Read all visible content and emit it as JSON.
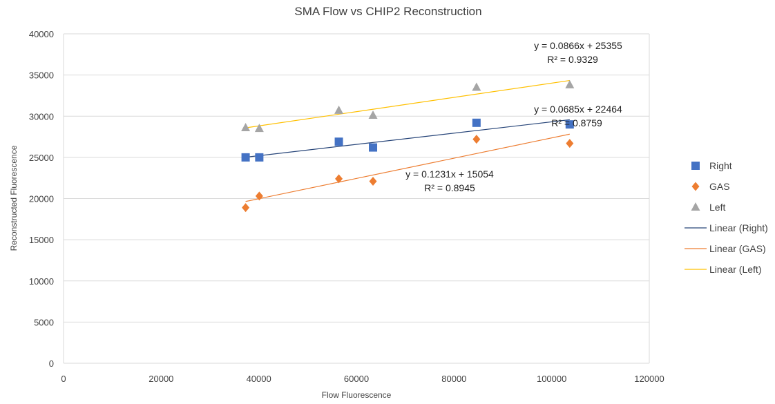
{
  "chart_data": {
    "type": "scatter",
    "title": "SMA Flow vs CHIP2 Reconstruction",
    "xlabel": "Flow Fluorescence",
    "ylabel": "Reconstructed Fluorescence",
    "xlim": [
      0,
      120000
    ],
    "ylim": [
      0,
      40000
    ],
    "x_ticks": [
      "0",
      "20000",
      "40000",
      "60000",
      "80000",
      "100000",
      "120000"
    ],
    "y_ticks": [
      "0",
      "5000",
      "10000",
      "15000",
      "20000",
      "25000",
      "30000",
      "35000",
      "40000"
    ],
    "grid": "horizontal",
    "legend_position": "right",
    "series": [
      {
        "name": "Right",
        "marker": "square",
        "color": "#4472C4",
        "points": [
          [
            37300,
            25000
          ],
          [
            40100,
            25000
          ],
          [
            56400,
            26900
          ],
          [
            63400,
            26200
          ],
          [
            84600,
            29200
          ],
          [
            103700,
            29000
          ]
        ]
      },
      {
        "name": "GAS",
        "marker": "diamond",
        "color": "#ED7D31",
        "points": [
          [
            37300,
            18900
          ],
          [
            40100,
            20300
          ],
          [
            56400,
            22400
          ],
          [
            63400,
            22100
          ],
          [
            84600,
            27200
          ],
          [
            103700,
            26700
          ]
        ]
      },
      {
        "name": "Left",
        "marker": "triangle",
        "color": "#A5A5A5",
        "points": [
          [
            37300,
            28600
          ],
          [
            40100,
            28500
          ],
          [
            56400,
            30700
          ],
          [
            63400,
            30100
          ],
          [
            84600,
            33500
          ],
          [
            103700,
            33800
          ]
        ]
      }
    ],
    "trendlines": [
      {
        "name": "Linear (Right)",
        "color": "#264478",
        "slope": 0.0685,
        "intercept": 22464,
        "x_range": [
          37300,
          103700
        ],
        "equation": "y = 0.0685x + 22464",
        "r2": "R² = 0.8759"
      },
      {
        "name": "Linear (GAS)",
        "color": "#ED7D31",
        "slope": 0.1231,
        "intercept": 15054,
        "x_range": [
          37300,
          103700
        ],
        "equation": "y = 0.1231x + 15054",
        "r2": "R² = 0.8945"
      },
      {
        "name": "Linear (Left)",
        "color": "#FFC000",
        "slope": 0.0866,
        "intercept": 25355,
        "x_range": [
          37300,
          103700
        ],
        "equation": "y = 0.0866x + 25355",
        "r2": "R² = 0.9329"
      }
    ]
  }
}
